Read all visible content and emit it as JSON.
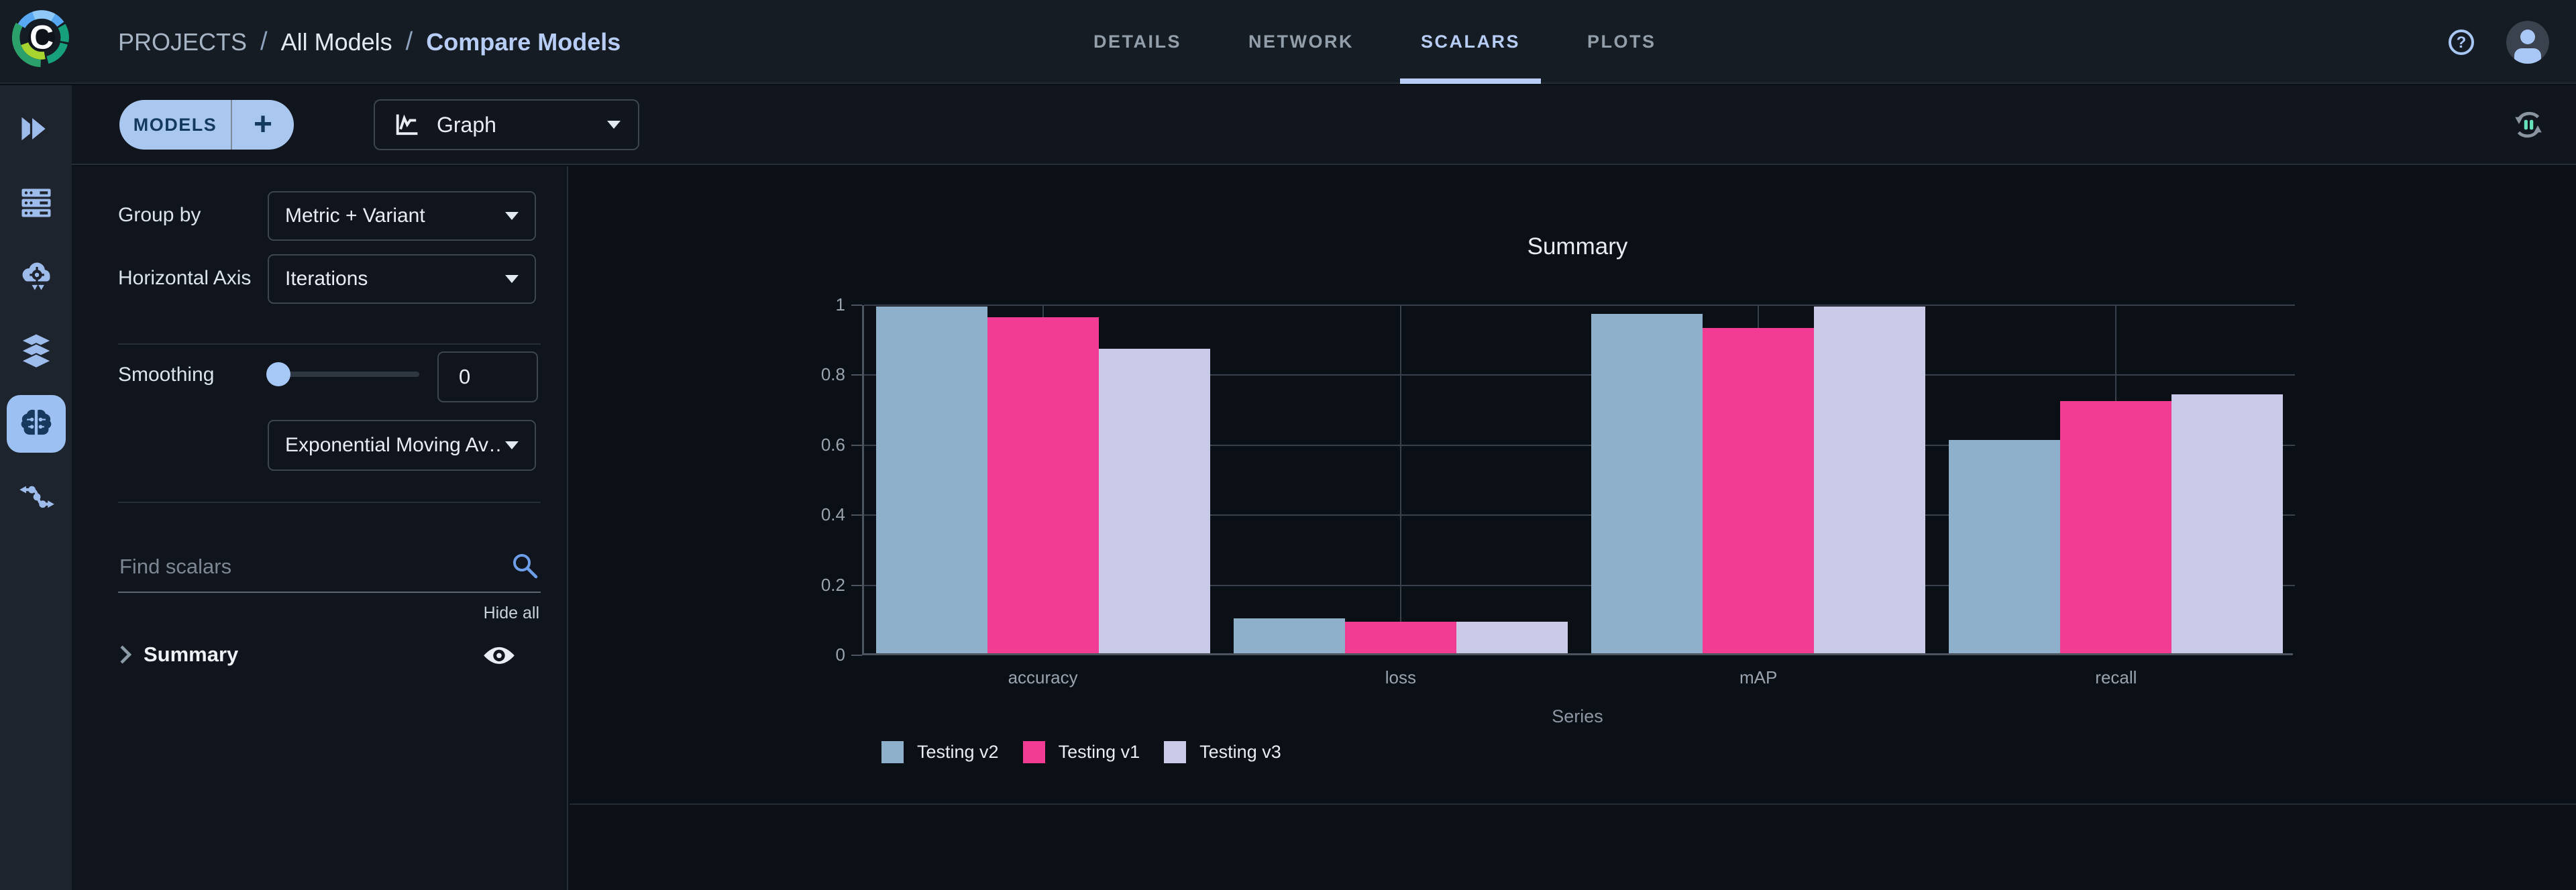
{
  "header": {
    "logo_letter": "C",
    "breadcrumb": {
      "items": [
        "PROJECTS",
        "All Models",
        "Compare Models"
      ],
      "separator": "/"
    },
    "tabs": [
      {
        "label": "DETAILS",
        "active": false
      },
      {
        "label": "NETWORK",
        "active": false
      },
      {
        "label": "SCALARS",
        "active": true
      },
      {
        "label": "PLOTS",
        "active": false
      }
    ]
  },
  "sidebar": {
    "icons": [
      {
        "name": "projects-icon",
        "active": false
      },
      {
        "name": "workers-queues-icon",
        "active": false
      },
      {
        "name": "applications-icon",
        "active": false
      },
      {
        "name": "datasets-icon",
        "active": false
      },
      {
        "name": "models-icon",
        "active": true
      },
      {
        "name": "pipelines-icon",
        "active": false
      }
    ]
  },
  "toolbar": {
    "models_button": "MODELS",
    "add_button": "+",
    "view_dropdown": "Graph",
    "refresh_icon": "auto-refresh-icon"
  },
  "panel": {
    "group_by_label": "Group by",
    "group_by_value": "Metric + Variant",
    "horizontal_axis_label": "Horizontal Axis",
    "horizontal_axis_value": "Iterations",
    "smoothing_label": "Smoothing",
    "smoothing_value": "0",
    "smoothing_algorithm": "Exponential Moving Av…",
    "search_placeholder": "Find scalars",
    "hide_all_label": "Hide all",
    "metric_group": "Summary"
  },
  "chart_data": {
    "type": "bar",
    "title": "Summary",
    "categories": [
      "accuracy",
      "loss",
      "mAP",
      "recall"
    ],
    "series": [
      {
        "name": "Testing v2",
        "color": "#8fb0ca",
        "values": [
          0.99,
          0.1,
          0.97,
          0.61
        ]
      },
      {
        "name": "Testing v1",
        "color": "#f23b93",
        "values": [
          0.96,
          0.09,
          0.93,
          0.72
        ]
      },
      {
        "name": "Testing v3",
        "color": "#c9c9e8",
        "values": [
          0.87,
          0.09,
          0.99,
          0.74
        ]
      }
    ],
    "xlabel": "Series",
    "ylabel": "",
    "ylim": [
      0,
      1
    ],
    "yticks": [
      0,
      0.2,
      0.4,
      0.6,
      0.8,
      1
    ],
    "grid": true,
    "legend_position": "bottom-left"
  },
  "colors": {
    "accent": "#a9c7ef",
    "active_tab": "#b7cdf5",
    "bar_testing_v2": "#8fb0ca",
    "bar_testing_v1": "#f23b93",
    "bar_testing_v3": "#c9c9e8",
    "refresh_pause": "#66e2ba"
  }
}
